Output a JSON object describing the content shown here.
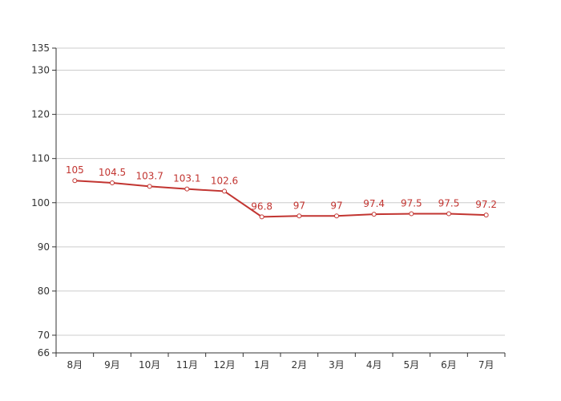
{
  "chart_data": {
    "type": "line",
    "categories": [
      "8月",
      "9月",
      "10月",
      "11月",
      "12月",
      "1月",
      "2月",
      "3月",
      "4月",
      "5月",
      "6月",
      "7月"
    ],
    "values": [
      105,
      104.5,
      103.7,
      103.1,
      102.6,
      96.8,
      97,
      97,
      97.4,
      97.5,
      97.5,
      97.2
    ],
    "data_labels": [
      "105",
      "104.5",
      "103.7",
      "103.1",
      "102.6",
      "96.8",
      "97",
      "97",
      "97.4",
      "97.5",
      "97.5",
      "97.2"
    ],
    "ylim": [
      66,
      135
    ],
    "yticks": [
      66,
      70,
      80,
      90,
      100,
      110,
      120,
      130,
      135
    ],
    "ytick_labels": [
      "66",
      "70",
      "80",
      "90",
      "100",
      "110",
      "120",
      "130",
      "135"
    ],
    "grid": true,
    "series_color": "#c23531",
    "grid_color": "#cccccc",
    "axis_color": "#333333"
  }
}
